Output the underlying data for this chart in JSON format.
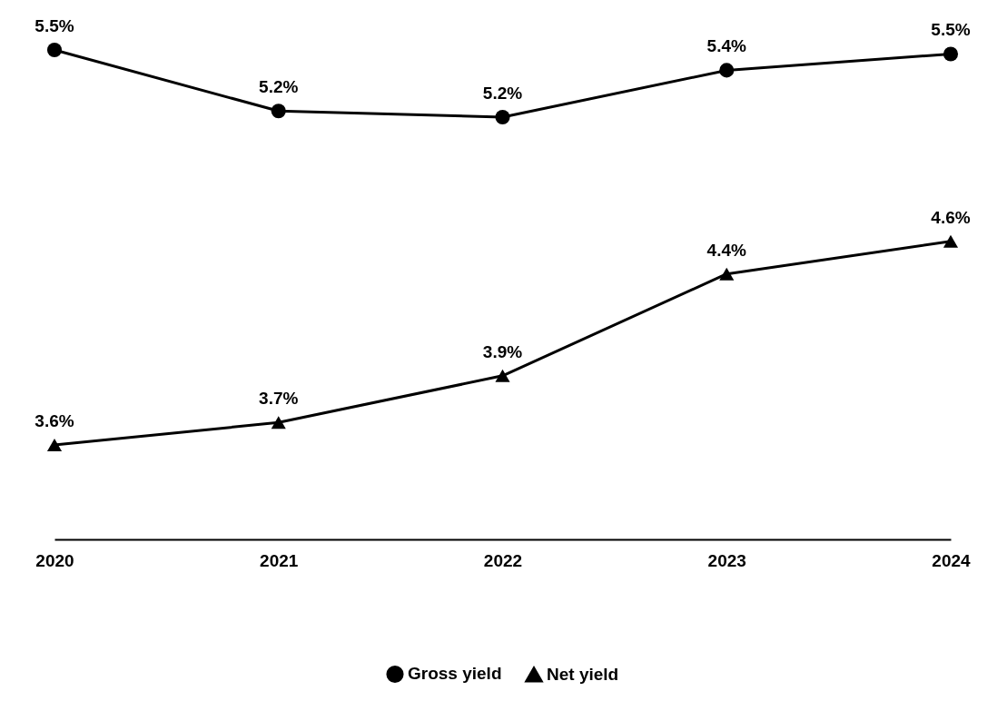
{
  "chart_data": {
    "type": "line",
    "categories": [
      "2020",
      "2021",
      "2022",
      "2023",
      "2024"
    ],
    "tick_labels": "x",
    "grid": false,
    "legend": "bottom",
    "series": [
      {
        "name": "Gross yield",
        "color": "#000000",
        "marker": "circle",
        "values": [
          5.54,
          5.24,
          5.21,
          5.44,
          5.52
        ],
        "value_labels": [
          "5.5%",
          "5.2%",
          "5.2%",
          "5.4%",
          "5.5%"
        ]
      },
      {
        "name": "Net yield",
        "color": "#000000",
        "marker": "triangle",
        "values": [
          3.6,
          3.71,
          3.94,
          4.44,
          4.6
        ],
        "value_labels": [
          "3.6%",
          "3.7%",
          "3.9%",
          "4.4%",
          "4.6%"
        ]
      }
    ]
  }
}
